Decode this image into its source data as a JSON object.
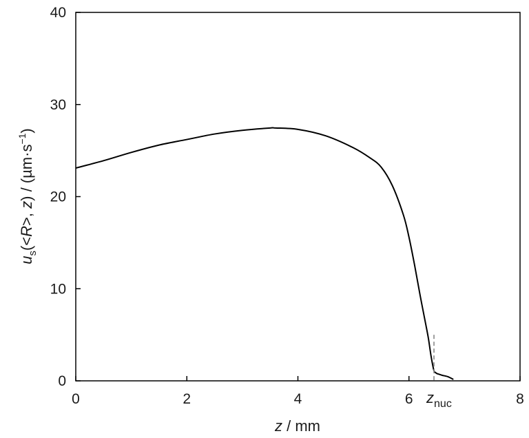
{
  "chart_data": {
    "type": "line",
    "xlabel": {
      "var": "z",
      "rest": " / mm"
    },
    "ylabel": {
      "var": "u",
      "sub": "s",
      "open": "(<",
      "r": "R",
      "mid": ">, ",
      "z": "z",
      "close": ") / (µm·s",
      "sup": "−1",
      "end": ")"
    },
    "xlim": [
      0,
      8
    ],
    "ylim": [
      0,
      40
    ],
    "xticks": [
      0,
      2,
      4,
      6,
      8
    ],
    "yticks": [
      0,
      10,
      20,
      30,
      40
    ],
    "grid": false,
    "annotation": {
      "main": "z",
      "sub": "nuc",
      "x": 6.45
    },
    "series": [
      {
        "color": "#000000",
        "x": [
          0,
          0.5,
          1.0,
          1.5,
          2.0,
          2.5,
          3.0,
          3.5,
          3.6,
          4.0,
          4.5,
          5.0,
          5.3,
          5.5,
          5.7,
          5.9,
          6.0,
          6.1,
          6.2,
          6.3,
          6.35,
          6.4,
          6.45,
          6.48,
          6.5,
          6.55,
          6.6,
          6.7,
          6.8
        ],
        "y": [
          23.1,
          23.9,
          24.8,
          25.6,
          26.2,
          26.8,
          27.2,
          27.45,
          27.45,
          27.3,
          26.6,
          25.3,
          24.2,
          23.2,
          21.2,
          18.0,
          15.6,
          12.6,
          9.3,
          6.2,
          4.6,
          2.6,
          1.1,
          0.9,
          0.8,
          0.7,
          0.6,
          0.45,
          0.15
        ]
      }
    ]
  }
}
